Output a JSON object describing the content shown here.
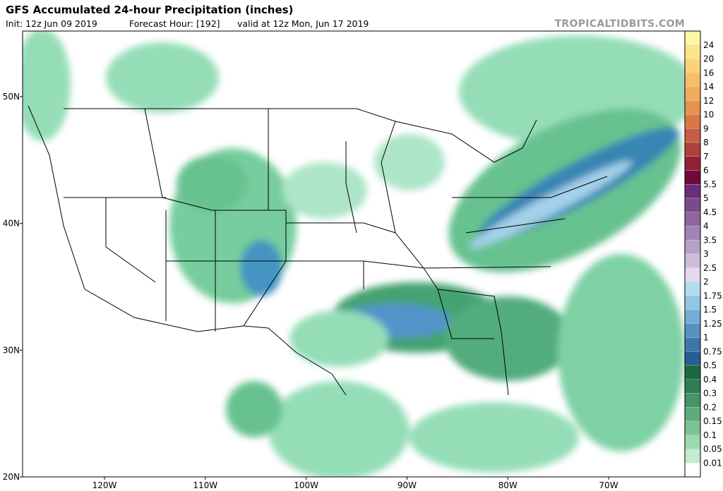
{
  "header": {
    "title": "GFS Accumulated 24-hour Precipitation (inches)",
    "init": "Init: 12z Jun 09 2019",
    "forecast_hour": "Forecast Hour: [192]",
    "valid": "valid at 12z Mon, Jun 17 2019",
    "site": "TROPICALTIDBITS.COM"
  },
  "map": {
    "latitude_labels": [
      "50N",
      "40N",
      "30N",
      "20N"
    ],
    "longitude_labels": [
      "120W",
      "110W",
      "100W",
      "90W",
      "80W",
      "70W"
    ]
  },
  "colorbar": {
    "labels": [
      "24",
      "20",
      "16",
      "14",
      "12",
      "10",
      "9",
      "8",
      "7",
      "6",
      "5.5",
      "5",
      "4.5",
      "4",
      "3.5",
      "3",
      "2.5",
      "2",
      "1.75",
      "1.5",
      "1.25",
      "1",
      "0.75",
      "0.5",
      "0.4",
      "0.3",
      "0.2",
      "0.15",
      "0.1",
      "0.05",
      "0.01"
    ]
  }
}
